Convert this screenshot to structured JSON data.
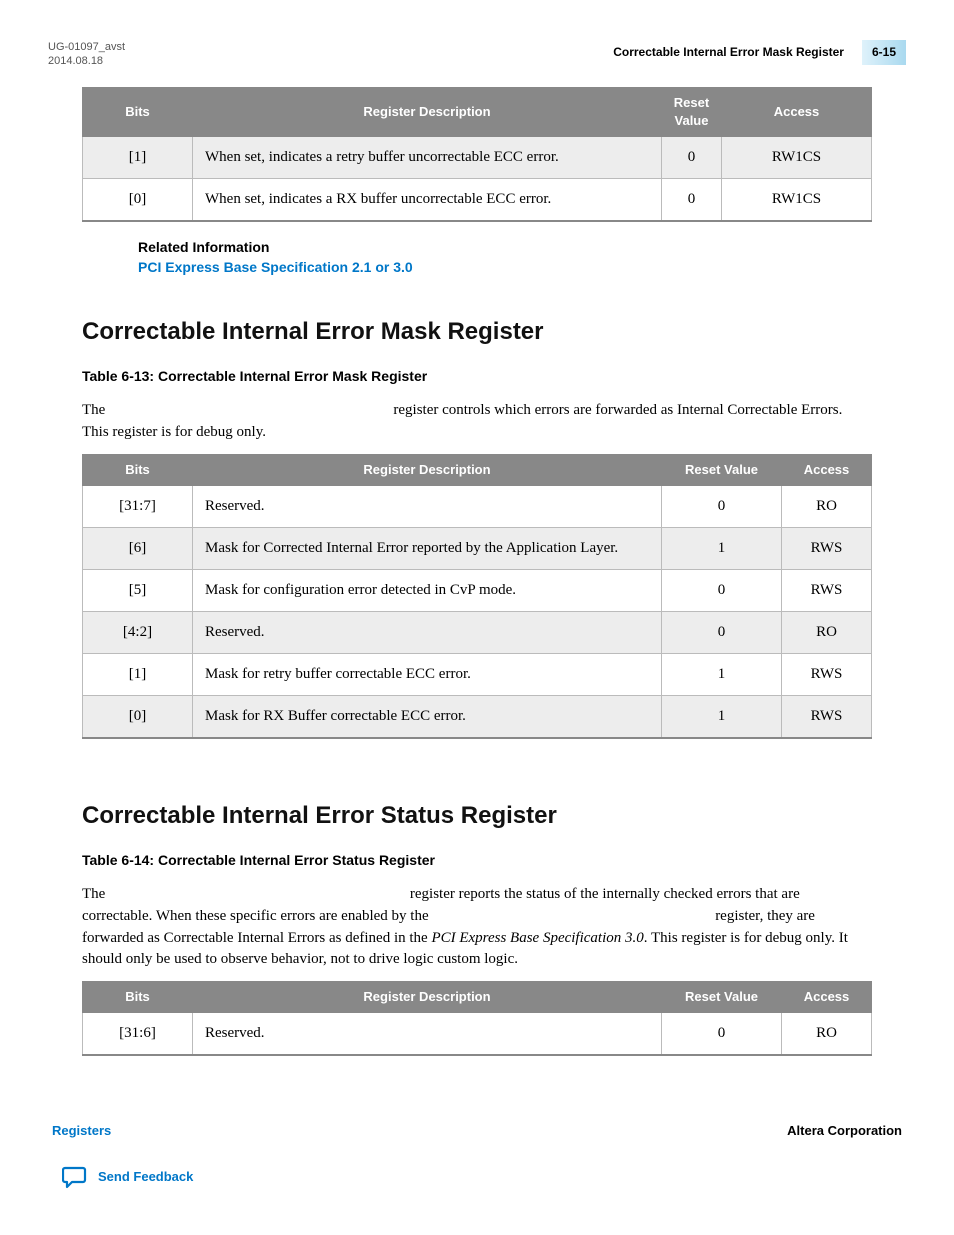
{
  "header": {
    "doc_id": "UG-01097_avst",
    "date": "2014.08.18",
    "title": "Correctable Internal Error Mask Register",
    "page": "6-15"
  },
  "table1": {
    "headers": [
      "Bits",
      "Register Description",
      "Reset Value",
      "Access"
    ],
    "rows": [
      {
        "bits": "[1]",
        "desc": "When set, indicates a retry buffer uncorrectable ECC error.",
        "reset": "0",
        "access": "RW1CS",
        "alt": true
      },
      {
        "bits": "[0]",
        "desc": "When set, indicates a RX buffer uncorrectable ECC error.",
        "reset": "0",
        "access": "RW1CS",
        "alt": false
      }
    ]
  },
  "related": {
    "title": "Related Information",
    "link": "PCI Express Base Specification 2.1 or 3.0"
  },
  "section1": {
    "heading": "Correctable Internal Error Mask Register",
    "caption": "Table 6-13: Correctable Internal Error Mask Register",
    "para_before": "The",
    "para_after": "register controls which errors are forwarded as Internal Correctable Errors. This register is for debug only.",
    "headers": [
      "Bits",
      "Register Description",
      "Reset Value",
      "Access"
    ],
    "rows": [
      {
        "bits": "[31:7]",
        "desc": "Reserved.",
        "reset": "0",
        "access": "RO",
        "alt": false
      },
      {
        "bits": "[6]",
        "desc": "Mask for Corrected Internal Error reported by the Application Layer.",
        "reset": "1",
        "access": "RWS",
        "alt": true
      },
      {
        "bits": "[5]",
        "desc": "Mask for configuration error detected in CvP mode.",
        "reset": "0",
        "access": "RWS",
        "alt": false
      },
      {
        "bits": "[4:2]",
        "desc": "Reserved.",
        "reset": "0",
        "access": "RO",
        "alt": true
      },
      {
        "bits": "[1]",
        "desc": "Mask for retry buffer correctable ECC error.",
        "reset": "1",
        "access": "RWS",
        "alt": false
      },
      {
        "bits": "[0]",
        "desc": "Mask for RX Buffer correctable ECC error.",
        "reset": "1",
        "access": "RWS",
        "alt": true
      }
    ]
  },
  "section2": {
    "heading": "Correctable Internal Error Status Register",
    "caption": "Table 6-14: Correctable Internal Error Status Register",
    "p1_a": "The ",
    "p1_b": " register reports the status of the internally checked errors that are correctable. When these specific errors are enabled by the ",
    "p1_c": " register, they are forwarded as Correctable Internal Errors as defined in the ",
    "p1_italic": "PCI Express Base Specification 3.0",
    "p1_d": ". This register is for debug only. It should only be used to observe behavior, not to drive logic custom logic.",
    "headers": [
      "Bits",
      "Register Description",
      "Reset Value",
      "Access"
    ],
    "rows": [
      {
        "bits": "[31:6]",
        "desc": "Reserved.",
        "reset": "0",
        "access": "RO",
        "alt": false
      }
    ]
  },
  "footer": {
    "left": "Registers",
    "right": "Altera Corporation",
    "feedback": "Send Feedback"
  },
  "colors": {
    "header_bg": "#888888",
    "link": "#0077c8",
    "alt_row": "#ededed"
  }
}
